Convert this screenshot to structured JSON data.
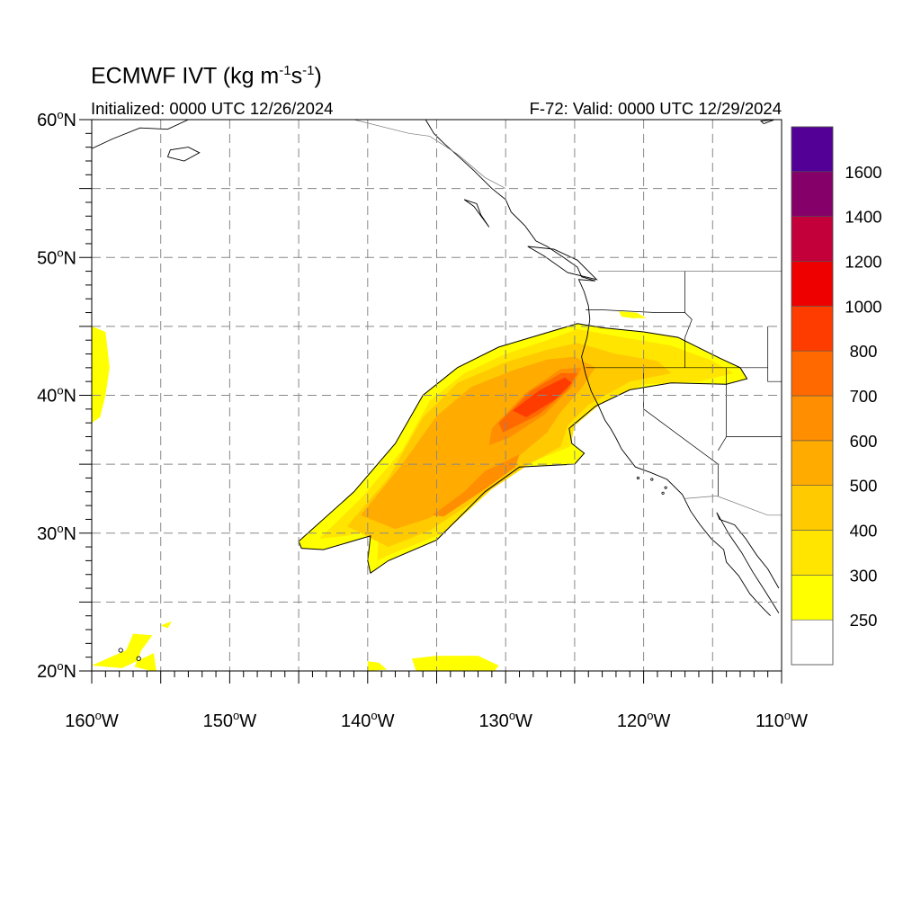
{
  "title": {
    "text": "ECMWF IVT (kg m",
    "sup1": "-1",
    "mid": "s",
    "sup2": "-1",
    "end": ")"
  },
  "subtitle_left": "Initialized: 0000 UTC 12/26/2024",
  "subtitle_right": "F-72: Valid: 0000 UTC 12/29/2024",
  "map": {
    "lon_range": [
      -160,
      -110
    ],
    "lat_range": [
      20,
      60
    ],
    "lat_ticks": [
      {
        "value": 20,
        "label": "20"
      },
      {
        "value": 30,
        "label": "30"
      },
      {
        "value": 40,
        "label": "40"
      },
      {
        "value": 50,
        "label": "50"
      },
      {
        "value": 60,
        "label": "60"
      }
    ],
    "lat_suffix": "N",
    "lon_ticks": [
      {
        "value": -160,
        "label": "160"
      },
      {
        "value": -150,
        "label": "150"
      },
      {
        "value": -140,
        "label": "140"
      },
      {
        "value": -130,
        "label": "130"
      },
      {
        "value": -120,
        "label": "120"
      },
      {
        "value": -110,
        "label": "110"
      }
    ],
    "lon_suffix": "W",
    "degree_symbol": "o",
    "grid": true,
    "grid_style": "dashed"
  },
  "colorbar": {
    "colors": [
      "#ffffff",
      "#ffff00",
      "#ffe500",
      "#ffcb00",
      "#ffab00",
      "#ff8e00",
      "#ff6900",
      "#ff3c00",
      "#ee0000",
      "#c4003a",
      "#850068",
      "#520096"
    ],
    "labels": [
      "250",
      "300",
      "400",
      "500",
      "600",
      "700",
      "800",
      "1000",
      "1200",
      "1400",
      "1600"
    ]
  },
  "field": {
    "plume_outer": [
      [
        -145,
        29.4
      ],
      [
        -141,
        33
      ],
      [
        -138,
        36.5
      ],
      [
        -136,
        40
      ],
      [
        -133.5,
        42
      ],
      [
        -130.5,
        43.5
      ],
      [
        -127.5,
        44.4
      ],
      [
        -124.8,
        45.2
      ],
      [
        -123,
        44.9
      ],
      [
        -120,
        44.6
      ],
      [
        -117.5,
        44.2
      ],
      [
        -116.5,
        43.7
      ],
      [
        -114.5,
        42.7
      ],
      [
        -113,
        42
      ],
      [
        -112.5,
        41.2
      ],
      [
        -114,
        40.8
      ],
      [
        -118,
        40.9
      ],
      [
        -121,
        40.4
      ],
      [
        -123.5,
        39.2
      ],
      [
        -125.4,
        37.6
      ],
      [
        -125.2,
        36.5
      ],
      [
        -124.3,
        35.8
      ],
      [
        -125,
        35
      ],
      [
        -129,
        34.8
      ],
      [
        -131.5,
        33
      ],
      [
        -135,
        29.5
      ],
      [
        -138.5,
        28
      ],
      [
        -139.8,
        27.1
      ],
      [
        -140,
        28
      ],
      [
        -139.8,
        29.8
      ],
      [
        -141.5,
        29.3
      ],
      [
        -143.2,
        28.8
      ],
      [
        -144.8,
        28.9
      ]
    ],
    "plume_300": [
      [
        -143.5,
        29.6
      ],
      [
        -140.5,
        32.5
      ],
      [
        -137.5,
        36
      ],
      [
        -135.5,
        39.6
      ],
      [
        -133,
        41.6
      ],
      [
        -130,
        43
      ],
      [
        -127,
        44
      ],
      [
        -124.8,
        44.8
      ],
      [
        -122,
        44.3
      ],
      [
        -118,
        43.6
      ],
      [
        -115,
        42.5
      ],
      [
        -113.5,
        41.6
      ],
      [
        -116,
        41
      ],
      [
        -120,
        40.8
      ],
      [
        -123,
        39.5
      ],
      [
        -125,
        37.8
      ],
      [
        -125.3,
        36.3
      ],
      [
        -128,
        35.2
      ],
      [
        -131,
        33.2
      ],
      [
        -134.5,
        30
      ],
      [
        -138.5,
        28.4
      ],
      [
        -139.3,
        28
      ],
      [
        -139.2,
        30.5
      ],
      [
        -141.5,
        29.8
      ]
    ],
    "plume_400": [
      [
        -141.5,
        30.5
      ],
      [
        -138.5,
        34
      ],
      [
        -136,
        38.4
      ],
      [
        -133.5,
        40.9
      ],
      [
        -130,
        42.4
      ],
      [
        -127,
        43.3
      ],
      [
        -124.8,
        43.8
      ],
      [
        -122,
        43
      ],
      [
        -119,
        42.5
      ],
      [
        -118,
        41.6
      ],
      [
        -121,
        41
      ],
      [
        -124,
        39.3
      ],
      [
        -125.5,
        37.8
      ],
      [
        -126,
        36.3
      ],
      [
        -129,
        34.6
      ],
      [
        -132,
        32.5
      ],
      [
        -135.5,
        30.2
      ],
      [
        -138.5,
        29
      ]
    ],
    "plume_500": [
      [
        -140.5,
        31.3
      ],
      [
        -137.5,
        35
      ],
      [
        -135,
        38.5
      ],
      [
        -132.5,
        40.6
      ],
      [
        -129.5,
        41.8
      ],
      [
        -127,
        42.6
      ],
      [
        -125,
        42.8
      ],
      [
        -123.5,
        42
      ],
      [
        -124.5,
        40.5
      ],
      [
        -126,
        38.8
      ],
      [
        -127,
        37.3
      ],
      [
        -129.5,
        35.2
      ],
      [
        -132.5,
        33
      ],
      [
        -135.5,
        31.1
      ],
      [
        -138,
        30.3
      ]
    ],
    "plume_600a": [
      [
        -133,
        33
      ],
      [
        -131.5,
        34.5
      ],
      [
        -129,
        35.7
      ],
      [
        -129.3,
        34.8
      ],
      [
        -131.5,
        33.2
      ],
      [
        -134.5,
        31.2
      ],
      [
        -135.3,
        31.3
      ]
    ],
    "plume_600b": [
      [
        -131,
        37.6
      ],
      [
        -128.5,
        40.2
      ],
      [
        -126,
        41.9
      ],
      [
        -124.5,
        42
      ],
      [
        -125.2,
        40.6
      ],
      [
        -127.2,
        38.6
      ],
      [
        -129.8,
        36.9
      ],
      [
        -131.2,
        36.4
      ]
    ],
    "plume_700": [
      [
        -130.5,
        38
      ],
      [
        -128.2,
        40.3
      ],
      [
        -126,
        41.6
      ],
      [
        -124.8,
        41.6
      ],
      [
        -125.5,
        40.4
      ],
      [
        -127.6,
        38.6
      ],
      [
        -130.2,
        37.3
      ]
    ],
    "plume_800": [
      [
        -129.5,
        38.9
      ],
      [
        -127.5,
        40.4
      ],
      [
        -125.7,
        41.3
      ],
      [
        -125.2,
        40.9
      ],
      [
        -126.4,
        39.7
      ],
      [
        -128.5,
        38.4
      ]
    ],
    "patch_west": [
      [
        -160,
        45
      ],
      [
        -159,
        44.6
      ],
      [
        -158.7,
        42
      ],
      [
        -159,
        40
      ],
      [
        -159.4,
        38.4
      ],
      [
        -160,
        38
      ]
    ],
    "patch_hawaii": [
      [
        -160,
        20.4
      ],
      [
        -157.5,
        21.5
      ],
      [
        -157,
        22.7
      ],
      [
        -155.6,
        22.6
      ],
      [
        -156.4,
        21.5
      ],
      [
        -156.9,
        20.3
      ],
      [
        -155.3,
        19.9
      ],
      [
        -155.5,
        21.3
      ],
      [
        -157.8,
        20.2
      ]
    ],
    "patch_hawaii2": [
      [
        -155,
        23.3
      ],
      [
        -154.2,
        23.6
      ],
      [
        -154.5,
        23.1
      ]
    ],
    "patch_south1": [
      [
        -140,
        20.7
      ],
      [
        -139.2,
        20.6
      ],
      [
        -138.6,
        20.1
      ],
      [
        -140,
        20
      ]
    ],
    "patch_south2": [
      [
        -136.8,
        20.9
      ],
      [
        -135,
        21.1
      ],
      [
        -132,
        21.1
      ],
      [
        -130.5,
        20.4
      ],
      [
        -130.8,
        20
      ],
      [
        -136.5,
        20
      ]
    ],
    "patch_oregon": [
      [
        -121.8,
        46.1
      ],
      [
        -120.5,
        46
      ],
      [
        -119.8,
        45.6
      ],
      [
        -120.8,
        45.6
      ],
      [
        -121.6,
        45.7
      ]
    ]
  },
  "coastline": {
    "color": "#000000"
  }
}
